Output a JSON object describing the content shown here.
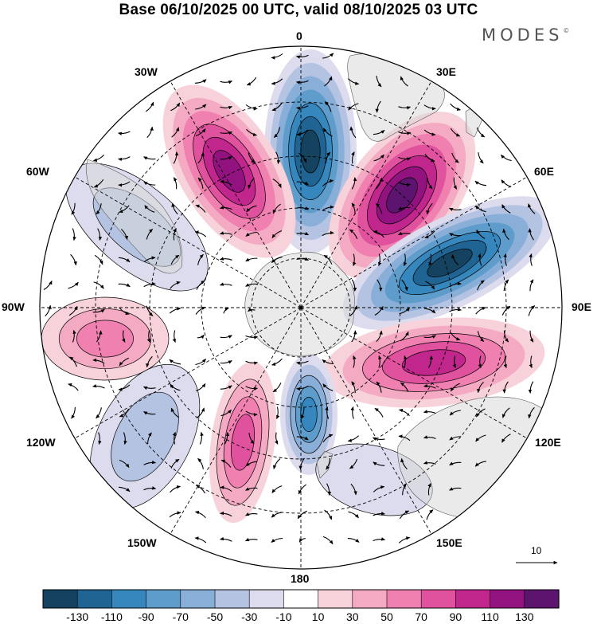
{
  "header": {
    "title": "Base 06/10/2025 00 UTC, valid 08/10/2025 03 UTC",
    "brand": "MODES",
    "brand_mark": "©"
  },
  "map": {
    "projection": "south-polar-stereographic",
    "meridian_labels": {
      "m0": "0",
      "m30e": "30E",
      "m60e": "60E",
      "m90e": "90E",
      "m120e": "120E",
      "m150e": "150E",
      "m180": "180",
      "m150w": "150W",
      "m120w": "120W",
      "m90w": "90W",
      "m60w": "60W",
      "m30w": "30W"
    },
    "vector_reference_label": "10",
    "vector_reference_value": 10
  },
  "colorbar": {
    "ticks": [
      "-130",
      "-110",
      "-90",
      "-70",
      "-50",
      "-30",
      "-10",
      "10",
      "30",
      "50",
      "70",
      "90",
      "110",
      "130"
    ],
    "colors": [
      "#15435f",
      "#1f6493",
      "#3587bd",
      "#5d9ccb",
      "#89afd9",
      "#b4c3e2",
      "#dcdcee",
      "#ffffff",
      "#f8d2da",
      "#f4aac3",
      "#ef80b0",
      "#e0519e",
      "#c0268c",
      "#92127f",
      "#5c146f"
    ]
  }
}
